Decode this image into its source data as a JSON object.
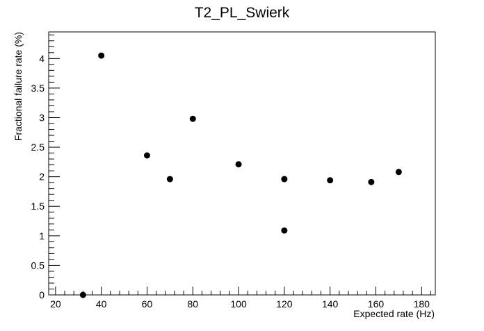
{
  "chart_data": {
    "type": "scatter",
    "title": "T2_PL_Swierk",
    "xlabel": "Expected rate (Hz)",
    "ylabel": "Fractional failure rate (%)",
    "xlim": [
      17,
      186
    ],
    "ylim": [
      0,
      4.45
    ],
    "x_ticks": [
      20,
      40,
      60,
      80,
      100,
      120,
      140,
      160,
      180
    ],
    "y_ticks": [
      0,
      0.5,
      1,
      1.5,
      2,
      2.5,
      3,
      3.5,
      4
    ],
    "x_tick_labels": [
      "20",
      "40",
      "60",
      "80",
      "100",
      "120",
      "140",
      "160",
      "180"
    ],
    "y_tick_labels": [
      "0",
      "0.5",
      "1",
      "1.5",
      "2",
      "2.5",
      "3",
      "3.5",
      "4"
    ],
    "grid": false,
    "legend": null,
    "marker_color": "#000000",
    "series": [
      {
        "points": [
          {
            "x": 32,
            "y": 0.0
          },
          {
            "x": 40,
            "y": 4.05
          },
          {
            "x": 60,
            "y": 2.36
          },
          {
            "x": 70,
            "y": 1.96
          },
          {
            "x": 80,
            "y": 2.98
          },
          {
            "x": 100,
            "y": 2.21
          },
          {
            "x": 120,
            "y": 1.96
          },
          {
            "x": 120,
            "y": 1.09
          },
          {
            "x": 140,
            "y": 1.94
          },
          {
            "x": 158,
            "y": 1.91
          },
          {
            "x": 170,
            "y": 2.08
          }
        ]
      }
    ]
  }
}
